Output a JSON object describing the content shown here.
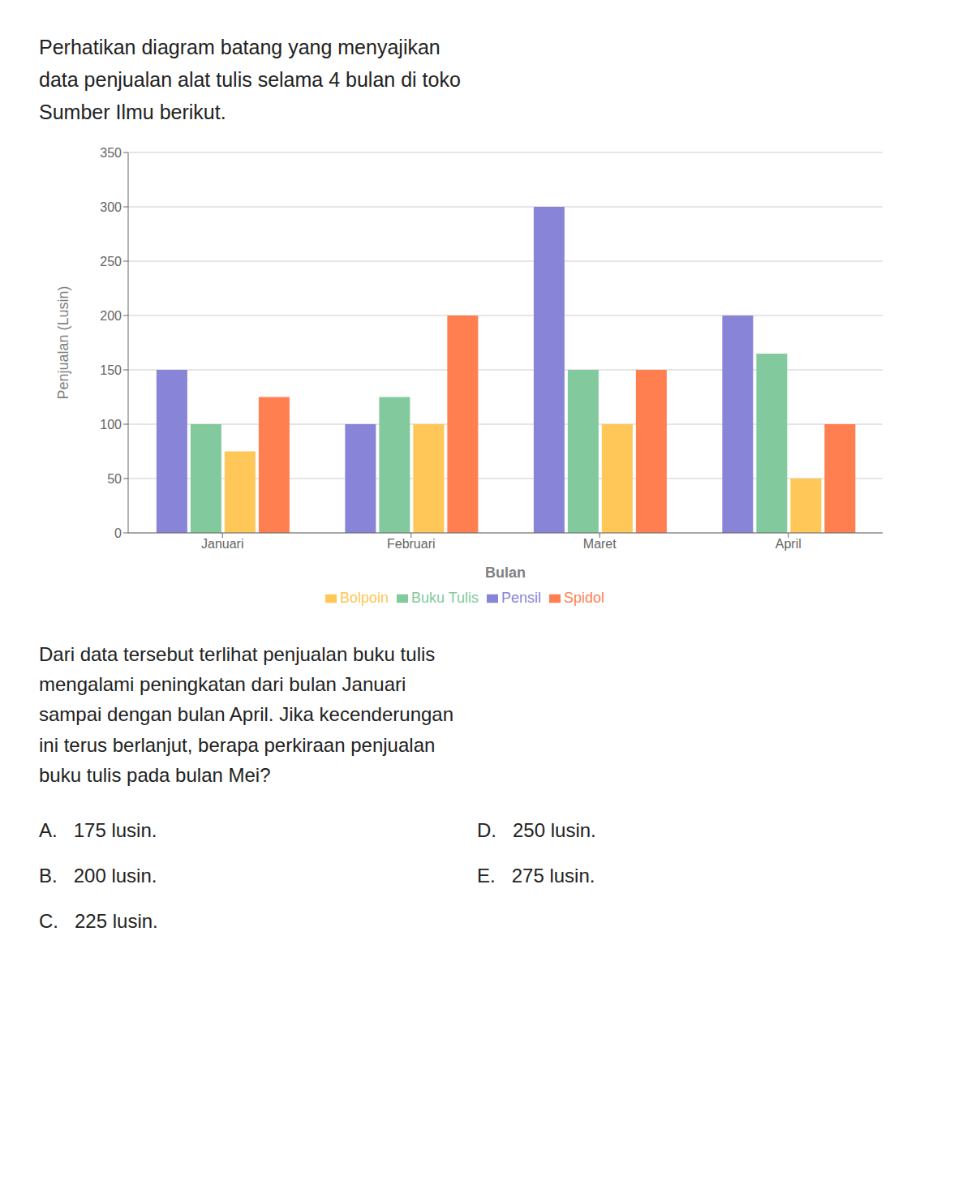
{
  "chart_data": {
    "type": "bar",
    "title": "Perhatikan diagram batang yang menyajikan\ndata penjualan alat tulis selama 4 bulan di toko\nSumber Ilmu berikut.",
    "x_label": "Bulan",
    "y_label": "Penjualan (Lusin)",
    "categories": [
      "Januari",
      "Februari",
      "Maret",
      "April"
    ],
    "series": [
      {
        "name": "Pensil",
        "color": "#8884d8",
        "values": [
          150,
          100,
          300,
          200
        ]
      },
      {
        "name": "Buku Tulis",
        "color": "#82ca9d",
        "values": [
          100,
          125,
          150,
          165
        ]
      },
      {
        "name": "Bolpoin",
        "color": "#ffc658",
        "values": [
          75,
          100,
          100,
          50
        ]
      },
      {
        "name": "Spidol",
        "color": "#ff7f50",
        "values": [
          125,
          200,
          150,
          100
        ]
      }
    ],
    "ylim": [
      0,
      350
    ],
    "yticks": [
      0,
      50,
      100,
      150,
      200,
      250,
      300,
      350
    ],
    "grid": true,
    "legend": "bottom",
    "annotations": [
      "Dari data tersebut terlihat penjualan buku tulis\nmengalami peningkatan dari bulan Januari\nsampai dengan bulan April. Jika kecenderungan\nini terus berlanjut, berapa perkiraan penjualan\nbuku tulis pada bulan Mei?",
      "A.   175 lusin.",
      "B.   200 lusin.",
      "C.   225 lusin.",
      "D.   250 lusin.",
      "E.   275 lusin."
    ]
  }
}
